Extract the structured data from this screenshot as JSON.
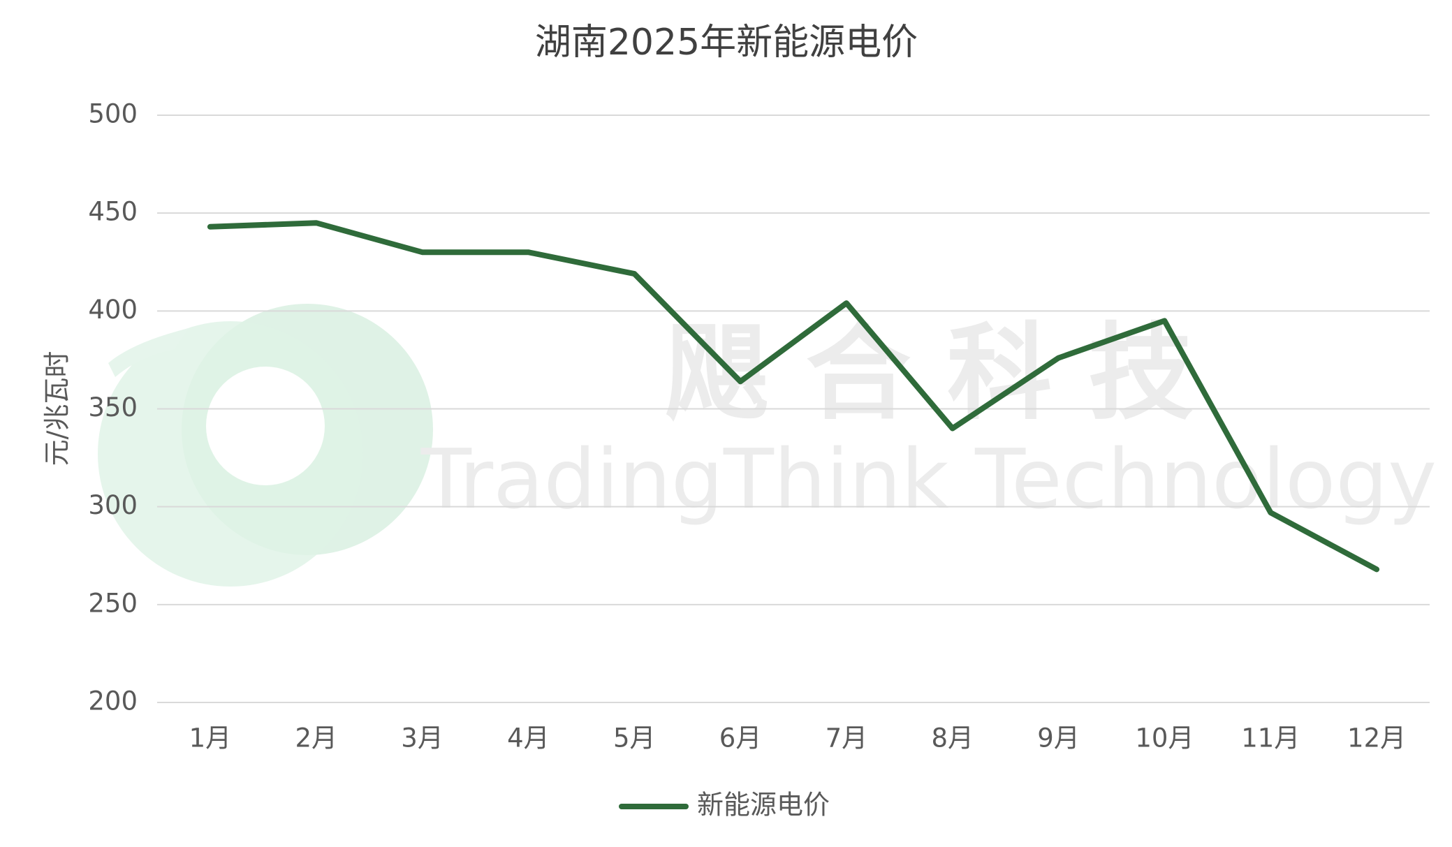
{
  "chart_data": {
    "type": "line",
    "title": "湖南2025年新能源电价",
    "y_label": "元/兆瓦时",
    "watermark": {
      "cn": "飓 合 科 技",
      "en": "TradingThink Technology"
    },
    "categories": [
      "1月",
      "2月",
      "3月",
      "4月",
      "5月",
      "6月",
      "7月",
      "8月",
      "9月",
      "10月",
      "11月",
      "12月"
    ],
    "series": [
      {
        "name": "新能源电价",
        "color": "#2f6b3a",
        "values": [
          443,
          445,
          430,
          430,
          419,
          364,
          404,
          340,
          376,
          395,
          297,
          268
        ]
      }
    ],
    "ylim": [
      200,
      500
    ],
    "yticks": [
      200,
      250,
      300,
      350,
      400,
      450,
      500
    ],
    "grid": true,
    "legend": "bottom"
  }
}
